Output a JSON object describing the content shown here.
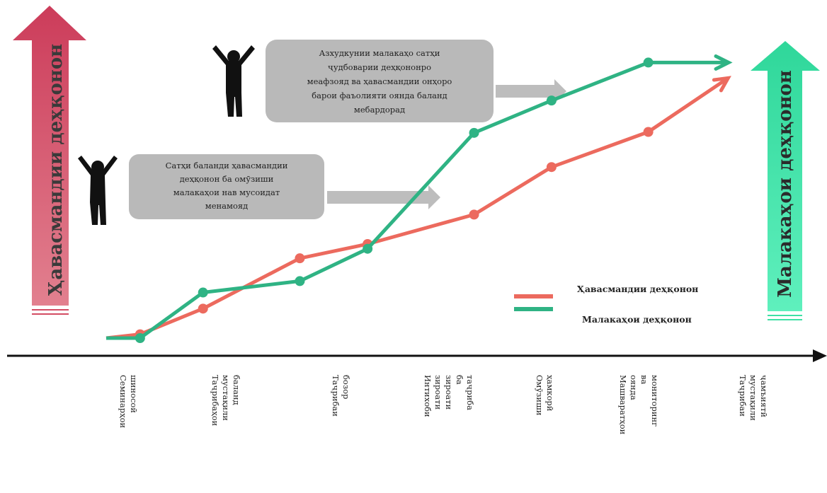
{
  "colors": {
    "series_red": "#ec6a5e",
    "series_green": "#2fb384",
    "left_arrow": "#d34c63",
    "right_arrow": "#3ee0a5",
    "callout_box": "#b9b9b9",
    "callout_arrow": "#bdbdbd",
    "axis": "#111111",
    "person": "#111111"
  },
  "left_arrow_label": "Ҳавасмандии деҳқонон",
  "right_arrow_label": "Малакаҳои деҳқонон",
  "callouts": [
    {
      "lines": [
        "Сатҳи баланди ҳавасмандии",
        "деҳқонон ба омӯзиши",
        "малакаҳои нав мусоидат",
        "менамояд"
      ],
      "person_icon": "person-arms-up-icon"
    },
    {
      "lines": [
        "Азхудкунии малакаҳо сатҳи",
        "ҷудбоварии деҳқононро",
        "меафзояд ва ҳавасмандии онҳоро",
        "барои фаъолияти оянда баланд",
        "мебардорад"
      ],
      "person_icon": "person-arms-up-icon"
    }
  ],
  "legend": [
    "Ҳавасмандии деҳқонон",
    "Малакаҳои деҳқонон"
  ],
  "chart_data": {
    "type": "line",
    "categories": [
      [
        "Семинарҳои",
        "шиносоӣ"
      ],
      [
        "Таҷрибаҳои",
        "мустақили",
        "баланд"
      ],
      [
        "Таҷрибаи",
        "бозор"
      ],
      [
        "Интихоби",
        "зироати",
        "зироати",
        "ба",
        "таҷриба"
      ],
      [
        "Омӯзиши",
        "ҳамкорӣ"
      ],
      [
        "Машваратҳои",
        "оянда",
        "ва",
        "мониторинг"
      ],
      [
        "Таҷрибаи",
        "мустақили",
        "ҷамъиятӣ"
      ]
    ],
    "series": [
      {
        "name": "Ҳавасмандии деҳқонон",
        "values": [
          0.0,
          0.04,
          0.31,
          0.84,
          0.99,
          1.3,
          1.8,
          2.17,
          2.72
        ]
      },
      {
        "name": "Малакаҳои деҳқонон",
        "values": [
          0.0,
          0.0,
          0.48,
          0.6,
          0.94,
          2.16,
          2.5,
          2.9,
          2.9
        ]
      }
    ],
    "x": [
      0,
      0.35,
      1,
      2,
      2.7,
      3.8,
      4.6,
      5.6,
      6.4
    ],
    "ylim": [
      0,
      3
    ],
    "grid": false,
    "legend_position": "bottom-right",
    "title": "",
    "xlabel": "",
    "ylabel": ""
  }
}
